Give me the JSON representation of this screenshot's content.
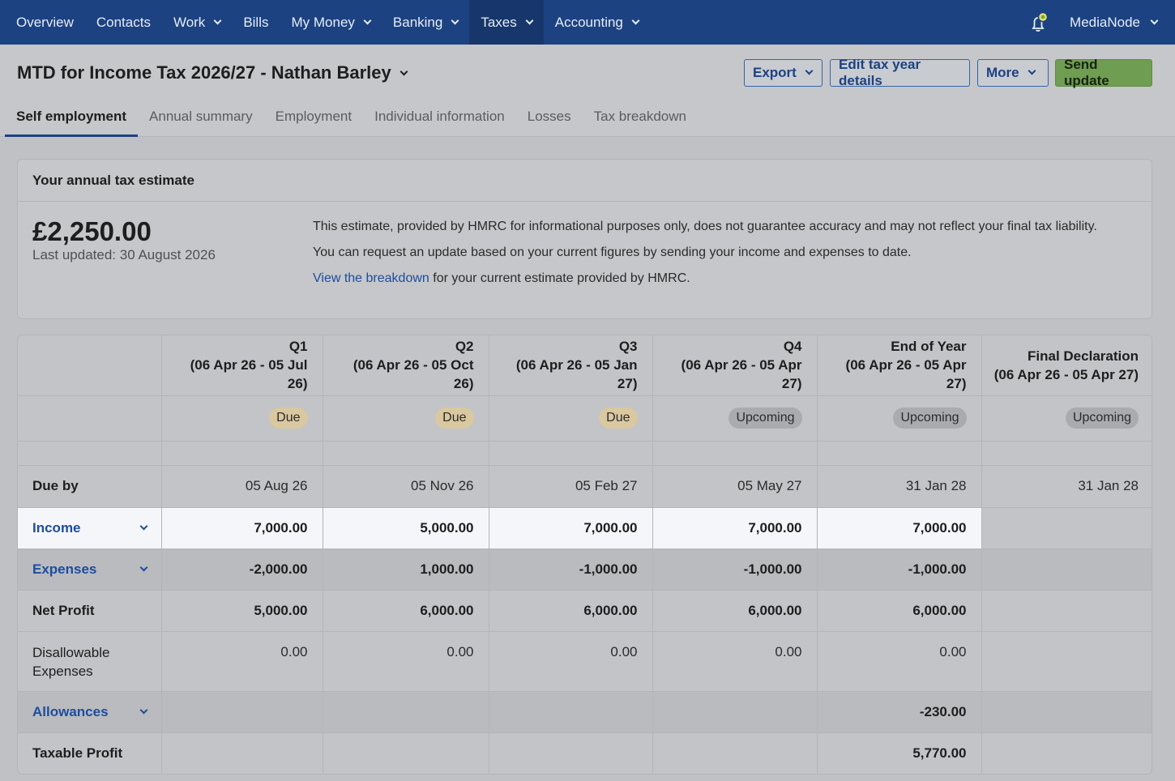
{
  "nav": {
    "items": [
      "Overview",
      "Contacts",
      "Work",
      "Bills",
      "My Money",
      "Banking",
      "Taxes",
      "Accounting"
    ],
    "dropdown": [
      false,
      false,
      true,
      false,
      true,
      true,
      true,
      true
    ],
    "active_index": 6,
    "org_name": "MediaNode",
    "accent": "#1d4282"
  },
  "header": {
    "title": "MTD for Income Tax 2026/27 - Nathan Barley",
    "export_label": "Export",
    "edit_label": "Edit tax year details",
    "more_label": "More",
    "send_label": "Send update",
    "tabs": [
      "Self employment",
      "Annual summary",
      "Employment",
      "Individual information",
      "Losses",
      "Tax breakdown"
    ],
    "active_tab": 0
  },
  "estimate": {
    "heading": "Your annual tax estimate",
    "amount": "£2,250.00",
    "updated": "Last updated: 30 August 2026",
    "para1": "This estimate, provided by HMRC for informational purposes only, does not guarantee accuracy and may not reflect your final tax liability.",
    "para2": "You can request an update based on your current figures by sending your income and expenses to date.",
    "link_text": "View the breakdown",
    "link_suffix": " for your current estimate provided by HMRC."
  },
  "table": {
    "columns": [
      {
        "title": "Q1",
        "range": "(06 Apr 26 - 05 Jul 26)",
        "status": "Due",
        "due_by": "05 Aug 26"
      },
      {
        "title": "Q2",
        "range": "(06 Apr 26 - 05 Oct 26)",
        "status": "Due",
        "due_by": "05 Nov 26"
      },
      {
        "title": "Q3",
        "range": "(06 Apr 26 - 05 Jan 27)",
        "status": "Due",
        "due_by": "05 Feb 27"
      },
      {
        "title": "Q4",
        "range": "(06 Apr 26 - 05 Apr 27)",
        "status": "Upcoming",
        "due_by": "05 May 27"
      },
      {
        "title": "End of Year",
        "range": "(06 Apr 26 - 05 Apr 27)",
        "status": "Upcoming",
        "due_by": "31 Jan 28"
      },
      {
        "title": "Final Declaration",
        "range": "(06 Apr 26 - 05 Apr 27)",
        "status": "Upcoming",
        "due_by": "31 Jan 28"
      }
    ],
    "due_by_label": "Due by",
    "rows": {
      "income": {
        "label": "Income",
        "values": [
          "7,000.00",
          "5,000.00",
          "7,000.00",
          "7,000.00",
          "7,000.00",
          ""
        ]
      },
      "expenses": {
        "label": "Expenses",
        "values": [
          "-2,000.00",
          "1,000.00",
          "-1,000.00",
          "-1,000.00",
          "-1,000.00",
          ""
        ]
      },
      "net_profit": {
        "label": "Net Profit",
        "values": [
          "5,000.00",
          "6,000.00",
          "6,000.00",
          "6,000.00",
          "6,000.00",
          ""
        ]
      },
      "disallowable": {
        "label": "Disallowable Expenses",
        "values": [
          "0.00",
          "0.00",
          "0.00",
          "0.00",
          "0.00",
          ""
        ]
      },
      "allowances": {
        "label": "Allowances",
        "values": [
          "",
          "",
          "",
          "",
          "-230.00",
          ""
        ]
      },
      "taxable_profit": {
        "label": "Taxable Profit",
        "values": [
          "",
          "",
          "",
          "",
          "5,770.00",
          ""
        ]
      }
    }
  }
}
